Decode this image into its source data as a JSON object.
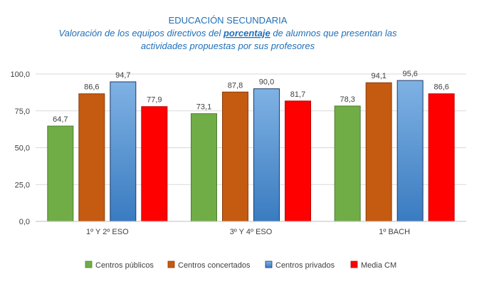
{
  "chart_data": {
    "type": "bar",
    "title": "EDUCACIÓN SECUNDARIA",
    "subtitle": {
      "line1_pre": "Valoración de los equipos directivos del ",
      "line1_highlight": "porcentaje",
      "line1_post": " de  alumnos que presentan las",
      "line2": "actividades propuestas por sus profesores"
    },
    "categories": [
      "1º Y 2º ESO",
      "3º Y 4º ESO",
      "1º BACH"
    ],
    "series": [
      {
        "name": "Centros públicos",
        "values": [
          64.7,
          73.1,
          78.3
        ],
        "labels": [
          "64,7",
          "73,1",
          "78,3"
        ],
        "color": "#70AD47",
        "stroke": "#4E7D30"
      },
      {
        "name": "Centros concertados",
        "values": [
          86.6,
          87.8,
          94.1
        ],
        "labels": [
          "86,6",
          "87,8",
          "94,1"
        ],
        "color": "#C55A11",
        "stroke": "#8A3D0B"
      },
      {
        "name": "Centros privados",
        "values": [
          94.7,
          90.0,
          95.6
        ],
        "labels": [
          "94,7",
          "90,0",
          "95,6"
        ],
        "color": "#5B9BD5",
        "stroke": "#1F3864"
      },
      {
        "name": "Media CM",
        "values": [
          77.9,
          81.7,
          86.6
        ],
        "labels": [
          "77,9",
          "81,7",
          "86,6"
        ],
        "color": "#FF0000",
        "stroke": "#C00000"
      }
    ],
    "ylim": [
      0,
      100
    ],
    "yticks": [
      0,
      25,
      50,
      75,
      100
    ],
    "ytick_labels": [
      "0,0",
      "25,0",
      "50,0",
      "75,0",
      "100,0"
    ],
    "grid": true,
    "legend": "bottom"
  }
}
